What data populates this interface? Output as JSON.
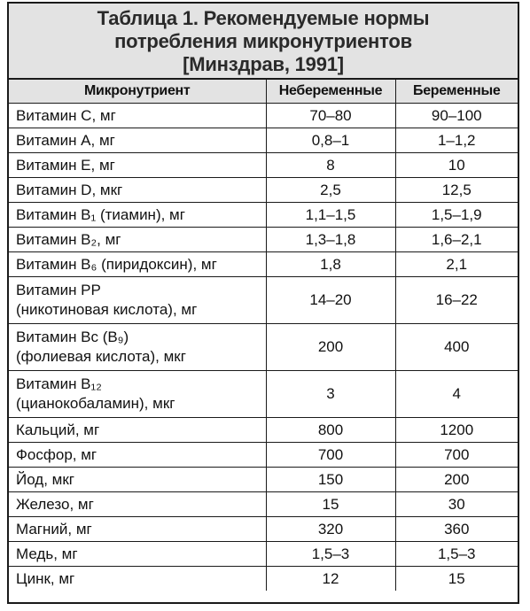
{
  "table": {
    "title_lines": [
      "Таблица 1. Рекомендуемые нормы",
      "потребления микронутриентов",
      "[Минздрав, 1991]"
    ],
    "columns": [
      "Микронутриент",
      "Небеременные",
      "Беременные"
    ],
    "rows": [
      {
        "name": [
          "Витамин С, мг"
        ],
        "non_pregnant": "70–80",
        "pregnant": "90–100"
      },
      {
        "name": [
          "Витамин А, мг"
        ],
        "non_pregnant": "0,8–1",
        "pregnant": "1–1,2"
      },
      {
        "name": [
          "Витамин Е, мг"
        ],
        "non_pregnant": "8",
        "pregnant": "10"
      },
      {
        "name": [
          "Витамин D, мкг"
        ],
        "non_pregnant": "2,5",
        "pregnant": "12,5"
      },
      {
        "name": [
          "Витамин B₁ (тиамин), мг"
        ],
        "non_pregnant": "1,1–1,5",
        "pregnant": "1,5–1,9"
      },
      {
        "name": [
          "Витамин B₂, мг"
        ],
        "non_pregnant": "1,3–1,8",
        "pregnant": "1,6–2,1"
      },
      {
        "name": [
          "Витамин B₆ (пиридоксин), мг"
        ],
        "non_pregnant": "1,8",
        "pregnant": "2,1"
      },
      {
        "name": [
          "Витамин РР",
          "(никотиновая кислота), мг"
        ],
        "non_pregnant": "14–20",
        "pregnant": "16–22"
      },
      {
        "name": [
          "Витамин Вс (B₉)",
          "(фолиевая кислота), мкг"
        ],
        "non_pregnant": "200",
        "pregnant": "400"
      },
      {
        "name": [
          "Витамин B₁₂",
          "(цианокобаламин), мкг"
        ],
        "non_pregnant": "3",
        "pregnant": "4"
      },
      {
        "name": [
          "Кальций, мг"
        ],
        "non_pregnant": "800",
        "pregnant": "1200"
      },
      {
        "name": [
          "Фосфор, мг"
        ],
        "non_pregnant": "700",
        "pregnant": "700"
      },
      {
        "name": [
          "Йод, мкг"
        ],
        "non_pregnant": "150",
        "pregnant": "200"
      },
      {
        "name": [
          "Железо, мг"
        ],
        "non_pregnant": "15",
        "pregnant": "30"
      },
      {
        "name": [
          "Магний, мг"
        ],
        "non_pregnant": "320",
        "pregnant": "360"
      },
      {
        "name": [
          "Медь, мг"
        ],
        "non_pregnant": "1,5–3",
        "pregnant": "1,5–3"
      },
      {
        "name": [
          "Цинк, мг"
        ],
        "non_pregnant": "12",
        "pregnant": "15"
      }
    ]
  }
}
